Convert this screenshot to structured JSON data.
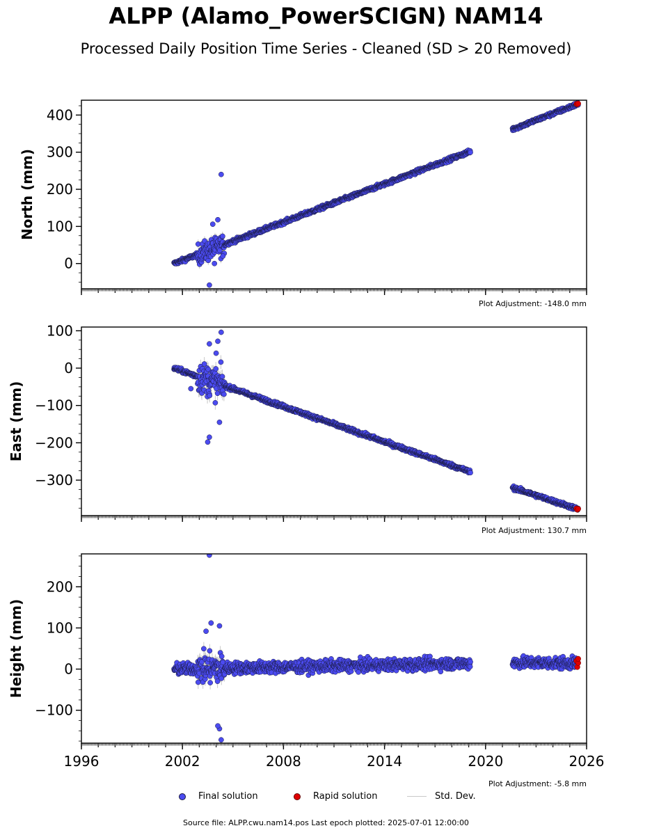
{
  "figure": {
    "title": "ALPP (Alamo_PowerSCIGN) NAM14",
    "subtitle": "Processed Daily Position Time Series - Cleaned (SD > 20 Removed)",
    "source_line": "Source file: ALPP.cwu.nam14.pos  Last epoch plotted: 2025-07-01 12:00:00"
  },
  "legend": {
    "final_label": "Final solution",
    "rapid_label": "Rapid solution",
    "std_label": "Std. Dev."
  },
  "colors": {
    "final": "#4b4bf0",
    "final_edge": "#1a1a40",
    "rapid": "#e00000",
    "std": "#c8c8c8"
  },
  "chart_data": [
    {
      "type": "scatter",
      "ylabel": "North (mm)",
      "adjustment": "Plot Adjustment: -148.0 mm",
      "xlim": [
        1996,
        2026
      ],
      "ylim": [
        -68,
        440
      ],
      "yticks": [
        0,
        100,
        200,
        300,
        400
      ],
      "xticks": [
        1996,
        2002,
        2008,
        2014,
        2020,
        2026
      ],
      "xtick_labels_visible": false,
      "trend_segments": [
        {
          "x": [
            2001.5,
            2019.1
          ],
          "y": [
            0,
            302
          ]
        },
        {
          "x": [
            2021.6,
            2025.5
          ],
          "y": [
            362,
            430
          ]
        }
      ],
      "noise_window": {
        "x": [
          2002.9,
          2004.5
        ],
        "spread": 30
      },
      "outliers": [
        [
          2003.6,
          -58
        ],
        [
          2003.8,
          106
        ],
        [
          2004.1,
          118
        ],
        [
          2004.3,
          240
        ],
        [
          2004.4,
          20
        ],
        [
          2003.9,
          0
        ]
      ],
      "rapid": [
        [
          2025.4,
          430
        ],
        [
          2025.45,
          429
        ],
        [
          2025.5,
          431
        ]
      ]
    },
    {
      "type": "scatter",
      "ylabel": "East (mm)",
      "adjustment": "Plot Adjustment: 130.7 mm",
      "xlim": [
        1996,
        2026
      ],
      "ylim": [
        -395,
        110
      ],
      "yticks": [
        100,
        0,
        -100,
        -200,
        -300
      ],
      "xticks": [
        1996,
        2002,
        2008,
        2014,
        2020,
        2026
      ],
      "xtick_labels_visible": false,
      "trend_segments": [
        {
          "x": [
            2001.5,
            2019.1
          ],
          "y": [
            0,
            -278
          ]
        },
        {
          "x": [
            2021.6,
            2025.5
          ],
          "y": [
            -320,
            -378
          ]
        }
      ],
      "noise_window": {
        "x": [
          2002.9,
          2004.5
        ],
        "spread": 45
      },
      "outliers": [
        [
          2003.5,
          -198
        ],
        [
          2003.6,
          -185
        ],
        [
          2003.6,
          65
        ],
        [
          2004.1,
          72
        ],
        [
          2004.3,
          96
        ],
        [
          2004.2,
          -145
        ],
        [
          2002.5,
          -55
        ],
        [
          2004.0,
          40
        ]
      ],
      "rapid": [
        [
          2025.4,
          -376
        ],
        [
          2025.45,
          -379
        ],
        [
          2025.5,
          -377
        ]
      ]
    },
    {
      "type": "scatter",
      "ylabel": "Height (mm)",
      "adjustment": "Plot Adjustment: -5.8 mm",
      "xlim": [
        1996,
        2026
      ],
      "ylim": [
        -180,
        280
      ],
      "yticks": [
        200,
        100,
        0,
        -100
      ],
      "xticks": [
        1996,
        2002,
        2008,
        2014,
        2020,
        2026
      ],
      "xtick_labels_visible": true,
      "trend_segments": [
        {
          "x": [
            2001.5,
            2019.1
          ],
          "y": [
            0,
            14
          ]
        },
        {
          "x": [
            2021.6,
            2025.5
          ],
          "y": [
            16,
            14
          ]
        }
      ],
      "noise_window": {
        "x": [
          2002.9,
          2004.5
        ],
        "spread": 40
      },
      "outliers": [
        [
          2003.6,
          277
        ],
        [
          2003.7,
          112
        ],
        [
          2004.2,
          105
        ],
        [
          2004.2,
          -145
        ],
        [
          2004.3,
          -172
        ],
        [
          2004.1,
          -138
        ],
        [
          2003.4,
          92
        ]
      ],
      "rapid": [
        [
          2025.4,
          20
        ],
        [
          2025.45,
          5
        ],
        [
          2025.5,
          15
        ],
        [
          2025.5,
          25
        ]
      ]
    }
  ]
}
